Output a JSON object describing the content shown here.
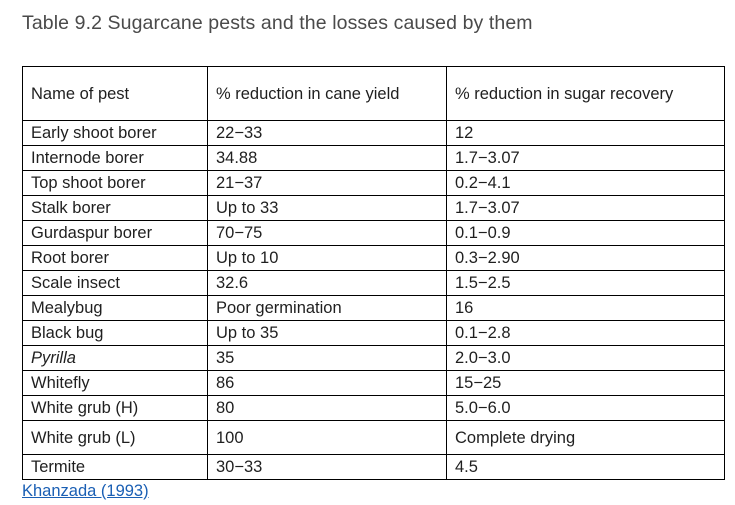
{
  "caption": "Table 9.2 Sugarcane pests and the losses caused by them",
  "table": {
    "headers": [
      "Name of pest",
      "% reduction in cane yield",
      "% reduction in sugar recovery"
    ],
    "rows": [
      {
        "pest": "Early shoot borer",
        "cane_yield": "22−33",
        "sugar_recovery": "12"
      },
      {
        "pest": "Internode borer",
        "cane_yield": "34.88",
        "sugar_recovery": "1.7−3.07"
      },
      {
        "pest": "Top shoot borer",
        "cane_yield": "21−37",
        "sugar_recovery": "0.2−4.1"
      },
      {
        "pest": "Stalk borer",
        "cane_yield": "Up to 33",
        "sugar_recovery": "1.7−3.07"
      },
      {
        "pest": "Gurdaspur borer",
        "cane_yield": "70−75",
        "sugar_recovery": "0.1−0.9"
      },
      {
        "pest": "Root borer",
        "cane_yield": "Up to 10",
        "sugar_recovery": "0.3−2.90"
      },
      {
        "pest": "Scale insect",
        "cane_yield": "32.6",
        "sugar_recovery": "1.5−2.5"
      },
      {
        "pest": "Mealybug",
        "cane_yield": "Poor germination",
        "sugar_recovery": "16"
      },
      {
        "pest": "Black bug",
        "cane_yield": "Up to 35",
        "sugar_recovery": "0.1−2.8"
      },
      {
        "pest": "Pyrilla",
        "cane_yield": "35",
        "sugar_recovery": "2.0−3.0"
      },
      {
        "pest": "Whitefly",
        "cane_yield": "86",
        "sugar_recovery": "15−25"
      },
      {
        "pest": "White grub (H)",
        "cane_yield": "80",
        "sugar_recovery": "5.0−6.0"
      },
      {
        "pest": "White grub (L)",
        "cane_yield": "100",
        "sugar_recovery": "Complete drying"
      },
      {
        "pest": "Termite",
        "cane_yield": "30−33",
        "sugar_recovery": "4.5"
      }
    ]
  },
  "source": {
    "label": "Khanzada (1993)"
  }
}
